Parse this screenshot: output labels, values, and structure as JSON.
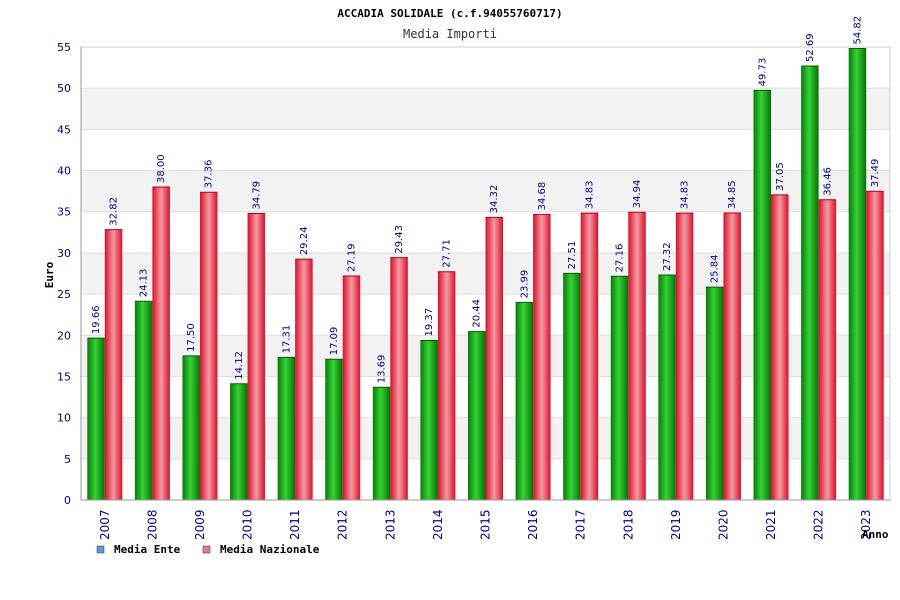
{
  "chart_data": {
    "type": "bar",
    "title": "ACCADIA SOLIDALE (c.f.94055760717)",
    "subtitle": "Media Importi",
    "ylabel": "Euro",
    "xlabel": "Anno",
    "ylim": [
      0,
      55
    ],
    "yticks": [
      0,
      5,
      10,
      15,
      20,
      25,
      30,
      35,
      40,
      45,
      50,
      55
    ],
    "grid": true,
    "legend_position": "bottom-left",
    "categories": [
      "2007",
      "2008",
      "2009",
      "2010",
      "2011",
      "2012",
      "2013",
      "2014",
      "2015",
      "2016",
      "2017",
      "2018",
      "2019",
      "2020",
      "2021",
      "2022",
      "2023"
    ],
    "series": [
      {
        "name": "Media Ente",
        "values": [
          19.66,
          24.13,
          17.5,
          14.12,
          17.31,
          17.09,
          13.69,
          19.37,
          20.44,
          23.99,
          27.51,
          27.16,
          27.32,
          25.84,
          49.73,
          52.69,
          54.82
        ],
        "labels": [
          "19.66",
          "24.13",
          "17.50",
          "14.12",
          "17.31",
          "17.09",
          "13.69",
          "19.37",
          "20.44",
          "23.99",
          "27.51",
          "27.16",
          "27.32",
          "25.84",
          "49.73",
          "52.69",
          "54.82"
        ],
        "bar_color": "#17b617",
        "legend_color": "#5b9bd5"
      },
      {
        "name": "Media Nazionale",
        "values": [
          32.82,
          38.0,
          37.36,
          34.79,
          29.24,
          27.19,
          29.43,
          27.71,
          34.32,
          34.68,
          34.83,
          34.94,
          34.83,
          34.85,
          37.05,
          36.46,
          37.49
        ],
        "labels": [
          "32.82",
          "38.00",
          "37.36",
          "34.79",
          "29.24",
          "27.19",
          "29.43",
          "27.71",
          "34.32",
          "34.68",
          "34.83",
          "34.94",
          "34.83",
          "34.85",
          "37.05",
          "36.46",
          "37.49"
        ],
        "bar_color": "#e8384f",
        "legend_color": "#e07ba0"
      }
    ]
  }
}
